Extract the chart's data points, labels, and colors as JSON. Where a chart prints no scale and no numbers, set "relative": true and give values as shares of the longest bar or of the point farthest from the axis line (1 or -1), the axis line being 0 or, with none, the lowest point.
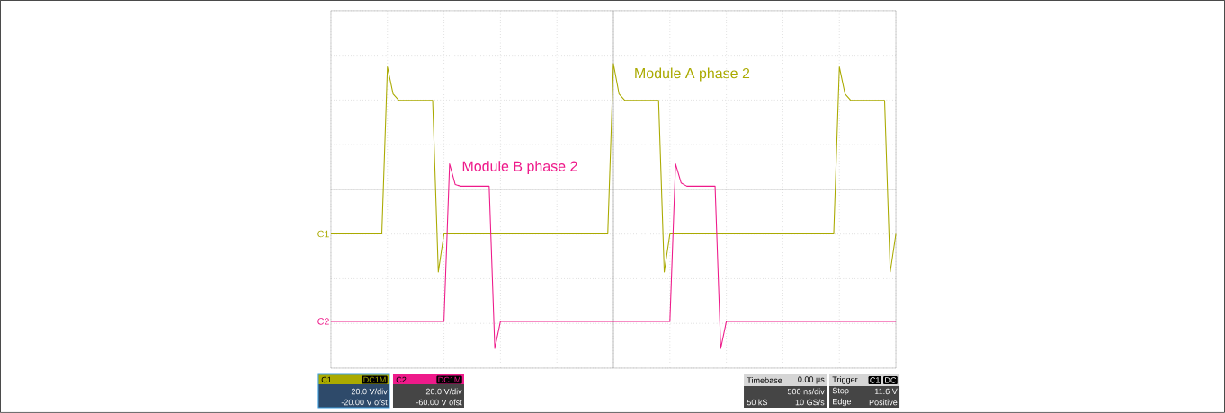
{
  "chart_data": {
    "type": "line",
    "relative": true,
    "grid": true,
    "legend": false,
    "marker": "none",
    "categories": [
      null,
      null,
      null,
      null,
      null,
      null,
      null,
      null,
      null,
      null,
      null,
      null,
      null,
      null,
      null,
      null,
      null,
      null,
      null,
      null,
      null,
      null,
      null,
      null,
      null,
      null,
      null,
      null,
      null,
      null,
      null,
      null,
      null,
      null,
      null,
      null,
      null,
      null,
      null,
      null,
      null,
      null,
      null,
      null,
      null,
      null,
      null,
      null,
      null,
      null,
      null,
      null,
      null,
      null,
      null,
      null,
      null,
      null,
      null,
      null,
      null,
      null,
      null,
      null,
      null,
      null,
      null,
      null,
      null,
      null,
      null,
      null,
      null,
      null,
      null,
      null,
      null,
      null,
      null,
      null,
      null,
      null,
      null,
      null,
      null,
      null,
      null,
      null,
      null,
      null,
      null,
      null,
      null,
      null,
      null,
      null,
      null,
      null,
      null,
      null,
      null
    ],
    "series": [
      {
        "name": "Module A phase 2",
        "color": "#aaaa00",
        "values": [
          -0.28,
          -0.28,
          -0.28,
          -0.28,
          -0.28,
          -0.28,
          -0.28,
          -0.28,
          -0.28,
          -0.28,
          0.77,
          0.6,
          0.56,
          0.56,
          0.56,
          0.56,
          0.56,
          0.56,
          0.56,
          -0.52,
          -0.28,
          -0.28,
          -0.28,
          -0.28,
          -0.28,
          -0.28,
          -0.28,
          -0.28,
          -0.28,
          -0.28,
          -0.28,
          -0.28,
          -0.28,
          -0.28,
          -0.28,
          -0.28,
          -0.28,
          -0.28,
          -0.28,
          -0.28,
          -0.28,
          -0.28,
          -0.28,
          -0.28,
          -0.28,
          -0.28,
          -0.28,
          -0.28,
          -0.28,
          -0.28,
          0.79,
          0.6,
          0.56,
          0.56,
          0.56,
          0.56,
          0.56,
          0.56,
          0.56,
          -0.52,
          -0.28,
          -0.28,
          -0.28,
          -0.28,
          -0.28,
          -0.28,
          -0.28,
          -0.28,
          -0.28,
          -0.28,
          -0.28,
          -0.28,
          -0.28,
          -0.28,
          -0.28,
          -0.28,
          -0.28,
          -0.28,
          -0.28,
          -0.28,
          -0.28,
          -0.28,
          -0.28,
          -0.28,
          -0.28,
          -0.28,
          -0.28,
          -0.28,
          -0.28,
          -0.28,
          0.77,
          0.6,
          0.56,
          0.56,
          0.56,
          0.56,
          0.56,
          0.56,
          0.56,
          -0.52,
          -0.28
        ]
      },
      {
        "name": "Module B phase 2",
        "color": "#ee1a8a",
        "values": [
          -0.83,
          -0.83,
          -0.83,
          -0.83,
          -0.83,
          -0.83,
          -0.83,
          -0.83,
          -0.83,
          -0.83,
          -0.83,
          -0.83,
          -0.83,
          -0.83,
          -0.83,
          -0.83,
          -0.83,
          -0.83,
          -0.83,
          -0.83,
          -0.83,
          0.16,
          0.03,
          0.02,
          0.02,
          0.02,
          0.02,
          0.02,
          0.02,
          -1,
          -0.83,
          -0.83,
          -0.83,
          -0.83,
          -0.83,
          -0.83,
          -0.83,
          -0.83,
          -0.83,
          -0.83,
          -0.83,
          -0.83,
          -0.83,
          -0.83,
          -0.83,
          -0.83,
          -0.83,
          -0.83,
          -0.83,
          -0.83,
          -0.83,
          -0.83,
          -0.83,
          -0.83,
          -0.83,
          -0.83,
          -0.83,
          -0.83,
          -0.83,
          -0.83,
          -0.83,
          0.16,
          0.04,
          0.02,
          0.02,
          0.02,
          0.02,
          0.02,
          0.02,
          -1,
          -0.83,
          -0.83,
          -0.83,
          -0.83,
          -0.83,
          -0.83,
          -0.83,
          -0.83,
          -0.83,
          -0.83,
          -0.83,
          -0.83,
          -0.83,
          -0.83,
          -0.83,
          -0.83,
          -0.83,
          -0.83,
          -0.83,
          -0.83,
          -0.83,
          -0.83,
          -0.83,
          -0.83,
          -0.83,
          -0.83,
          -0.83,
          -0.83,
          -0.83,
          -0.83,
          -0.83
        ]
      }
    ],
    "annotations": [
      "C1",
      "C2",
      "C1",
      "DC1M",
      "20.0 V/div",
      "-20.00 V ofst",
      "C2",
      "DC1M",
      "20.0 V/div",
      "-60.00 V ofst",
      "Timebase",
      "0.00 µs",
      "500 ns/div",
      "50 kS",
      "10 GS/s",
      "Trigger",
      "C1",
      "DC",
      "Stop",
      "11.6 V",
      "Edge",
      "Positive"
    ]
  }
}
